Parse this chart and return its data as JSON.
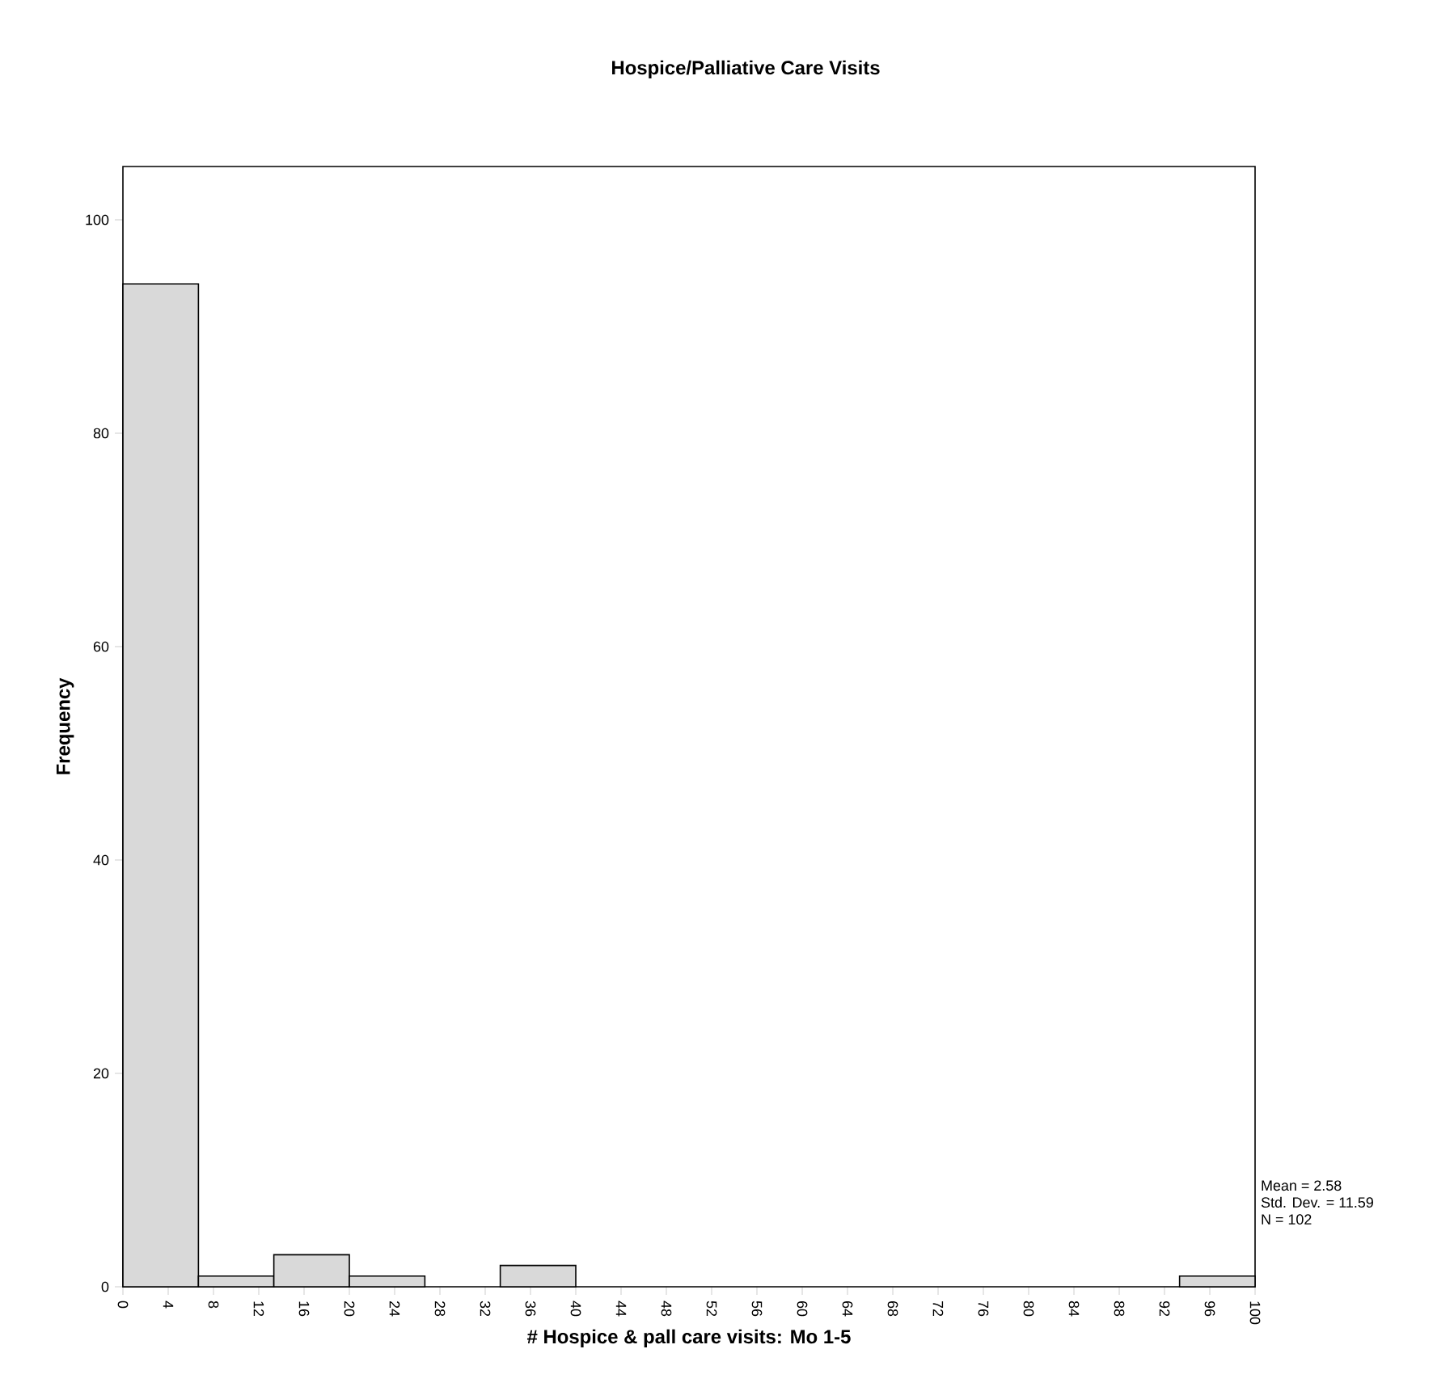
{
  "chart_data": {
    "type": "histogram",
    "title": "Hospice/Palliative Care Visits",
    "xlabel": "# Hospice & pall care visits: Mo 1-5",
    "ylabel": "Frequency",
    "bins": [
      0,
      6.67,
      13.33,
      20,
      26.67,
      33.33,
      40,
      46.67,
      53.33,
      60,
      66.67,
      73.33,
      80,
      86.67,
      93.33,
      100
    ],
    "values": [
      94,
      1,
      3,
      1,
      0,
      2,
      0,
      0,
      0,
      0,
      0,
      0,
      0,
      0,
      1
    ],
    "color": "#d9d9d9",
    "xlim": [
      0,
      100
    ],
    "xticks": [
      0,
      4,
      8,
      12,
      16,
      20,
      24,
      28,
      32,
      36,
      40,
      44,
      48,
      52,
      56,
      60,
      64,
      68,
      72,
      76,
      80,
      84,
      88,
      92,
      96,
      100
    ],
    "ylim": [
      0,
      105
    ],
    "yticks": [
      0,
      20,
      40,
      60,
      80,
      100
    ],
    "annotations": [
      "Mean = 2.58",
      "Std. Dev. = 11.59",
      "N = 102"
    ],
    "grid": false
  }
}
